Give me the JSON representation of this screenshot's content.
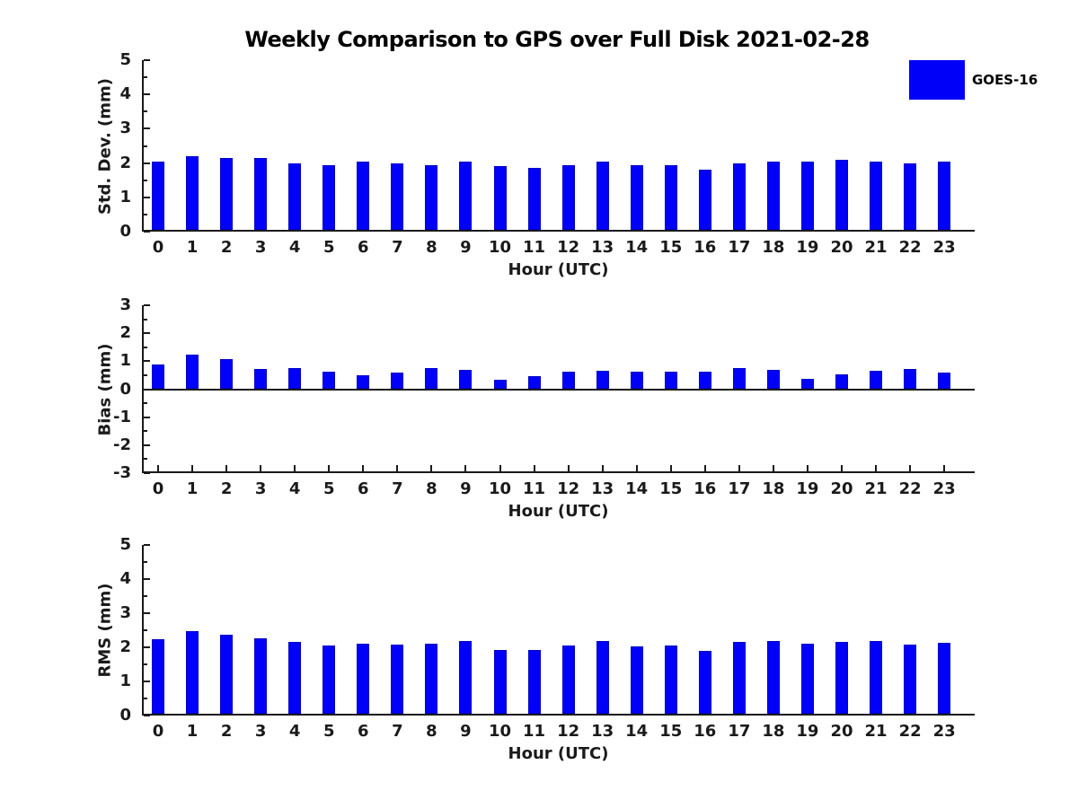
{
  "figure": {
    "title": "Weekly Comparison to GPS over Full Disk 2021-02-28",
    "legend": {
      "label": "GOES-16",
      "color": "#0000fa"
    },
    "background": "#ffffff",
    "axis_color": "#1a1a1a",
    "bar_color": "#0000fa"
  },
  "chart_data": [
    {
      "type": "bar",
      "series_name": "GOES-16",
      "ylabel": "Std. Dev. (mm)",
      "xlabel": "Hour (UTC)",
      "categories": [
        "0",
        "1",
        "2",
        "3",
        "4",
        "5",
        "6",
        "7",
        "8",
        "9",
        "10",
        "11",
        "12",
        "13",
        "14",
        "15",
        "16",
        "17",
        "18",
        "19",
        "20",
        "21",
        "22",
        "23"
      ],
      "values": [
        2.05,
        2.2,
        2.15,
        2.15,
        2.0,
        1.95,
        2.05,
        2.0,
        1.95,
        2.05,
        1.9,
        1.85,
        1.95,
        2.05,
        1.95,
        1.95,
        1.8,
        2.0,
        2.05,
        2.05,
        2.1,
        2.05,
        2.0,
        2.05
      ],
      "ylim": [
        0,
        5
      ],
      "yticks": [
        0,
        1,
        2,
        3,
        4,
        5
      ],
      "grid": false,
      "legend_position": "top-right"
    },
    {
      "type": "bar",
      "series_name": "GOES-16",
      "ylabel": "Bias (mm)",
      "xlabel": "Hour (UTC)",
      "categories": [
        "0",
        "1",
        "2",
        "3",
        "4",
        "5",
        "6",
        "7",
        "8",
        "9",
        "10",
        "11",
        "12",
        "13",
        "14",
        "15",
        "16",
        "17",
        "18",
        "19",
        "20",
        "21",
        "22",
        "23"
      ],
      "values": [
        0.88,
        1.22,
        1.07,
        0.73,
        0.77,
        0.64,
        0.5,
        0.58,
        0.75,
        0.68,
        0.35,
        0.48,
        0.62,
        0.67,
        0.63,
        0.63,
        0.63,
        0.76,
        0.7,
        0.38,
        0.52,
        0.66,
        0.72,
        0.6
      ],
      "ylim": [
        -3,
        3
      ],
      "yticks": [
        3,
        2,
        1,
        0,
        -1,
        -2,
        -3
      ],
      "zero_line": true,
      "grid": false
    },
    {
      "type": "bar",
      "series_name": "GOES-16",
      "ylabel": "RMS (mm)",
      "xlabel": "Hour (UTC)",
      "categories": [
        "0",
        "1",
        "2",
        "3",
        "4",
        "5",
        "6",
        "7",
        "8",
        "9",
        "10",
        "11",
        "12",
        "13",
        "14",
        "15",
        "16",
        "17",
        "18",
        "19",
        "20",
        "21",
        "22",
        "23"
      ],
      "values": [
        2.25,
        2.48,
        2.38,
        2.27,
        2.17,
        2.04,
        2.11,
        2.08,
        2.1,
        2.18,
        1.93,
        1.92,
        2.04,
        2.18,
        2.03,
        2.05,
        1.89,
        2.15,
        2.19,
        2.1,
        2.15,
        2.18,
        2.09,
        2.12
      ],
      "ylim": [
        0,
        5
      ],
      "yticks": [
        0,
        1,
        2,
        3,
        4,
        5
      ],
      "grid": false
    }
  ]
}
